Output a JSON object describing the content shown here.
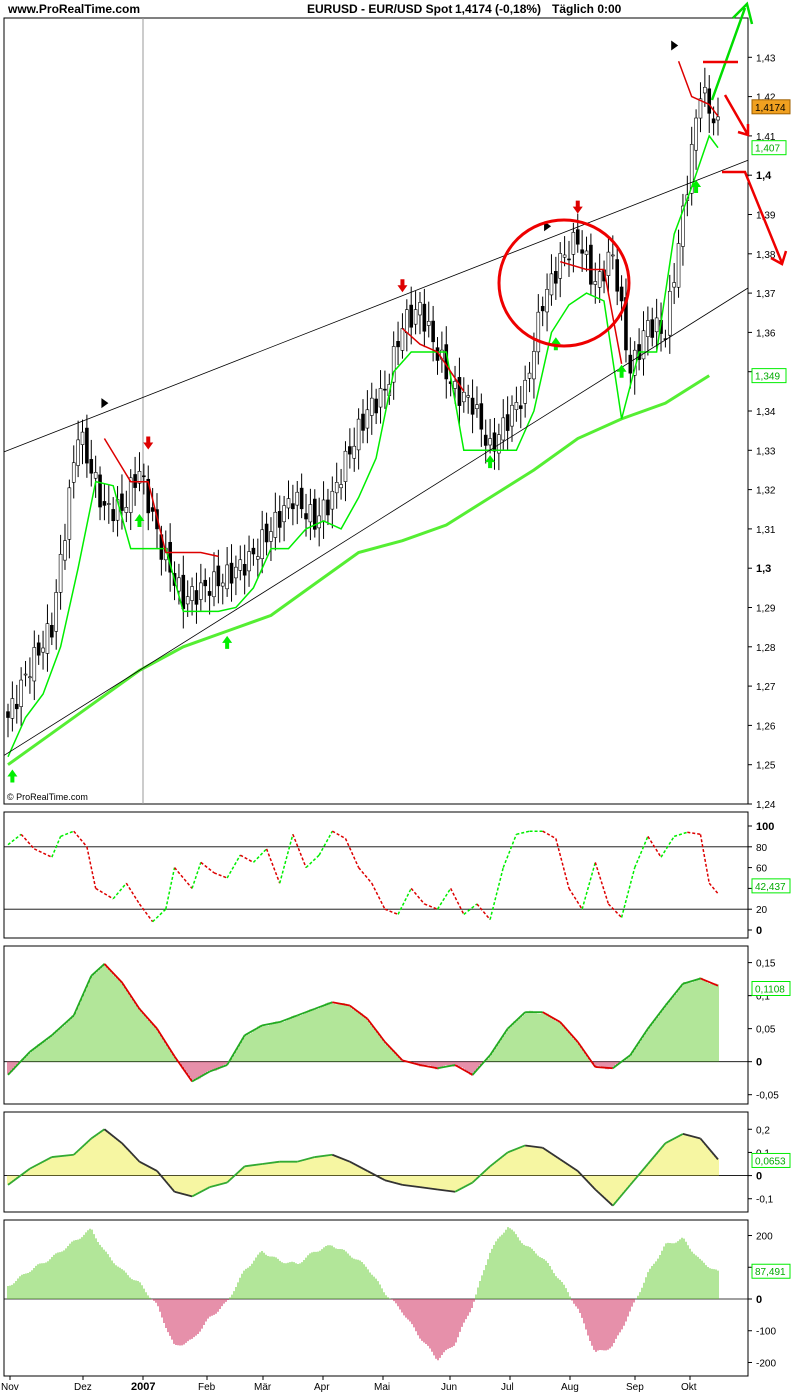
{
  "header": {
    "site": "www.ProRealTime.com",
    "symbol": "EURUSD - EUR/USD Spot",
    "price_change": "1,4174 (-0,18%)",
    "period": "Täglich  0:00"
  },
  "copyright": "© ProRealTime.com",
  "colors": {
    "up_green": "#00ee00",
    "down_red": "#dd0000",
    "ma_green": "#55ee33",
    "hist_green": "#66cc33",
    "hist_red": "#cc2255",
    "hist_yellow": "#eeee44",
    "badge_orange": "#f0a020",
    "annotation_red": "#ee0000",
    "annotation_green": "#00dd00"
  },
  "x_axis": {
    "labels": [
      "Nov",
      "Dez",
      "2007",
      "Feb",
      "Mär",
      "Apr",
      "Mai",
      "Jun",
      "Jul",
      "Aug",
      "Sep",
      "Okt"
    ],
    "bold_label": "2007"
  },
  "chart_data": [
    {
      "type": "candlestick",
      "title": "EURUSD - EUR/USD Spot",
      "ylim": [
        1.24,
        1.44
      ],
      "yticks": [
        "1,43",
        "1,42",
        "1,41",
        "1,4",
        "1,39",
        "1,38",
        "1,37",
        "1,36",
        "1,35",
        "1,34",
        "1,33",
        "1,32",
        "1,31",
        "1,3",
        "1,29",
        "1,28",
        "1,27",
        "1,26",
        "1,25",
        "1,24"
      ],
      "bold_ticks": [
        "1,4",
        "1,3"
      ],
      "last_price_label": "1,4174",
      "support_label": "1,407",
      "ma_label": "1,349",
      "price_path": {
        "x": [
          0,
          5,
          10,
          13,
          16,
          19,
          22,
          26,
          30,
          35,
          40,
          45,
          50,
          55,
          60,
          65,
          70,
          74,
          78,
          82,
          86,
          90,
          94,
          98,
          102,
          106,
          110,
          114,
          118,
          122,
          126,
          130,
          134,
          138,
          142,
          146,
          150,
          154,
          158,
          162
        ],
        "y": [
          1.262,
          1.275,
          1.285,
          1.31,
          1.335,
          1.325,
          1.315,
          1.315,
          1.325,
          1.305,
          1.292,
          1.295,
          1.298,
          1.302,
          1.31,
          1.318,
          1.312,
          1.318,
          1.33,
          1.34,
          1.345,
          1.362,
          1.366,
          1.355,
          1.345,
          1.342,
          1.33,
          1.338,
          1.345,
          1.368,
          1.378,
          1.384,
          1.372,
          1.38,
          1.35,
          1.362,
          1.36,
          1.39,
          1.422,
          1.412
        ]
      },
      "supertrend_green": {
        "x": [
          0,
          4,
          8,
          12,
          16,
          20,
          24,
          28,
          32,
          36,
          40,
          44,
          48,
          52,
          56,
          60,
          64,
          68,
          72,
          76,
          80,
          84,
          88,
          92,
          96,
          100,
          104,
          108,
          112,
          116,
          120,
          124,
          128,
          132,
          136,
          140,
          144,
          148,
          152,
          156,
          160,
          162
        ],
        "y": [
          1.252,
          1.262,
          1.268,
          1.28,
          1.3,
          1.322,
          1.321,
          1.305,
          1.305,
          1.305,
          1.289,
          1.289,
          1.289,
          1.29,
          1.295,
          1.305,
          1.305,
          1.31,
          1.312,
          1.31,
          1.318,
          1.328,
          1.35,
          1.355,
          1.355,
          1.355,
          1.33,
          1.33,
          1.33,
          1.33,
          1.34,
          1.36,
          1.367,
          1.37,
          1.368,
          1.338,
          1.355,
          1.355,
          1.385,
          1.397,
          1.41,
          1.407
        ]
      },
      "supertrend_red": [
        {
          "x": [
            22,
            28,
            32,
            36,
            44,
            48
          ],
          "y": [
            1.333,
            1.322,
            1.322,
            1.304,
            1.304,
            1.303
          ]
        },
        {
          "x": [
            90,
            94,
            98,
            104
          ],
          "y": [
            1.361,
            1.357,
            1.355,
            1.345
          ]
        },
        {
          "x": [
            126,
            132,
            136,
            140
          ],
          "y": [
            1.378,
            1.376,
            1.376,
            1.352
          ]
        },
        {
          "x": [
            153,
            156,
            160,
            162
          ],
          "y": [
            1.429,
            1.42,
            1.418,
            1.415
          ]
        }
      ],
      "moving_average": {
        "x": [
          0,
          10,
          20,
          30,
          40,
          50,
          60,
          70,
          80,
          90,
          100,
          110,
          120,
          130,
          140,
          150,
          160
        ],
        "y": [
          1.25,
          1.258,
          1.266,
          1.274,
          1.28,
          1.284,
          1.288,
          1.296,
          1.304,
          1.307,
          1.311,
          1.318,
          1.325,
          1.333,
          1.338,
          1.342,
          1.349
        ]
      },
      "trendlines": [
        {
          "x": [
            -2,
            165
          ],
          "y": [
            1.33,
            1.403
          ]
        },
        {
          "x": [
            -2,
            165
          ],
          "y": [
            1.253,
            1.37
          ]
        }
      ]
    },
    {
      "type": "line",
      "title": "Stochastic",
      "ylim": [
        0,
        100
      ],
      "yticks": [
        "100",
        "80",
        "60",
        "40",
        "20",
        "0"
      ],
      "levels": [
        80,
        20
      ],
      "last_value_label": "42,437",
      "x": [
        0,
        3,
        6,
        10,
        12,
        15,
        18,
        20,
        24,
        27,
        30,
        33,
        36,
        38,
        42,
        44,
        47,
        50,
        53,
        56,
        59,
        62,
        65,
        68,
        71,
        74,
        77,
        80,
        83,
        86,
        89,
        92,
        95,
        98,
        101,
        104,
        107,
        110,
        113,
        116,
        119,
        122,
        125,
        128,
        131,
        134,
        137,
        140,
        143,
        146,
        149,
        152,
        155,
        158,
        160,
        162
      ],
      "y": [
        82,
        92,
        78,
        70,
        90,
        95,
        80,
        40,
        30,
        45,
        25,
        8,
        20,
        60,
        40,
        65,
        55,
        50,
        72,
        65,
        78,
        45,
        92,
        60,
        72,
        95,
        88,
        60,
        45,
        20,
        15,
        40,
        25,
        20,
        40,
        15,
        25,
        10,
        60,
        92,
        95,
        95,
        88,
        40,
        20,
        65,
        25,
        12,
        60,
        90,
        70,
        90,
        94,
        92,
        45,
        35
      ]
    },
    {
      "type": "area",
      "title": "MACD",
      "ylim": [
        -0.055,
        0.16
      ],
      "yticks": [
        "0,15",
        "0,1",
        "0,05",
        "0",
        "-0,05"
      ],
      "last_value_label": "0,1108",
      "x": [
        0,
        5,
        10,
        15,
        19,
        22,
        26,
        30,
        34,
        38,
        42,
        46,
        50,
        54,
        58,
        62,
        66,
        70,
        74,
        78,
        82,
        86,
        90,
        94,
        98,
        102,
        106,
        110,
        114,
        118,
        122,
        126,
        130,
        134,
        138,
        142,
        146,
        150,
        154,
        158,
        162
      ],
      "y": [
        -0.02,
        0.015,
        0.04,
        0.07,
        0.13,
        0.148,
        0.12,
        0.08,
        0.05,
        0.008,
        -0.03,
        -0.015,
        -0.005,
        0.04,
        0.055,
        0.06,
        0.07,
        0.08,
        0.09,
        0.085,
        0.065,
        0.03,
        0.002,
        -0.005,
        -0.01,
        -0.005,
        -0.02,
        0.01,
        0.05,
        0.075,
        0.075,
        0.06,
        0.03,
        -0.008,
        -0.01,
        0.01,
        0.05,
        0.085,
        0.118,
        0.126,
        0.115
      ]
    },
    {
      "type": "area",
      "title": "Momentum",
      "ylim": [
        -0.14,
        0.24
      ],
      "yticks": [
        "0,2",
        "0,1",
        "0",
        "-0,1"
      ],
      "last_value_label": "0,0653",
      "x": [
        0,
        5,
        10,
        15,
        19,
        22,
        26,
        30,
        34,
        38,
        42,
        46,
        50,
        54,
        58,
        62,
        66,
        70,
        74,
        78,
        82,
        86,
        90,
        94,
        98,
        102,
        106,
        110,
        114,
        118,
        122,
        126,
        130,
        134,
        138,
        142,
        146,
        150,
        154,
        158,
        162
      ],
      "y": [
        -0.04,
        0.03,
        0.08,
        0.09,
        0.16,
        0.2,
        0.14,
        0.06,
        0.02,
        -0.07,
        -0.09,
        -0.05,
        -0.03,
        0.04,
        0.05,
        0.06,
        0.06,
        0.08,
        0.09,
        0.06,
        0.02,
        -0.02,
        -0.04,
        -0.05,
        -0.06,
        -0.07,
        -0.03,
        0.04,
        0.1,
        0.13,
        0.12,
        0.07,
        0.02,
        -0.06,
        -0.13,
        -0.04,
        0.05,
        0.14,
        0.18,
        0.16,
        0.07
      ]
    },
    {
      "type": "bar",
      "title": "CCI",
      "ylim": [
        -230,
        230
      ],
      "yticks": [
        "200",
        "100",
        "0",
        "-100",
        "-200"
      ],
      "last_value_label": "87,491",
      "x": [
        0,
        5,
        10,
        15,
        19,
        22,
        26,
        30,
        34,
        38,
        42,
        46,
        50,
        54,
        58,
        62,
        66,
        70,
        74,
        78,
        82,
        86,
        90,
        94,
        98,
        102,
        106,
        110,
        114,
        118,
        122,
        126,
        130,
        134,
        138,
        142,
        146,
        150,
        154,
        158,
        162
      ],
      "y": [
        40,
        90,
        130,
        180,
        220,
        150,
        90,
        50,
        -20,
        -150,
        -130,
        -60,
        -10,
        90,
        150,
        120,
        110,
        150,
        170,
        140,
        100,
        20,
        -40,
        -120,
        -190,
        -140,
        -20,
        150,
        230,
        170,
        130,
        60,
        -30,
        -170,
        -150,
        -40,
        80,
        170,
        190,
        120,
        85
      ]
    }
  ]
}
